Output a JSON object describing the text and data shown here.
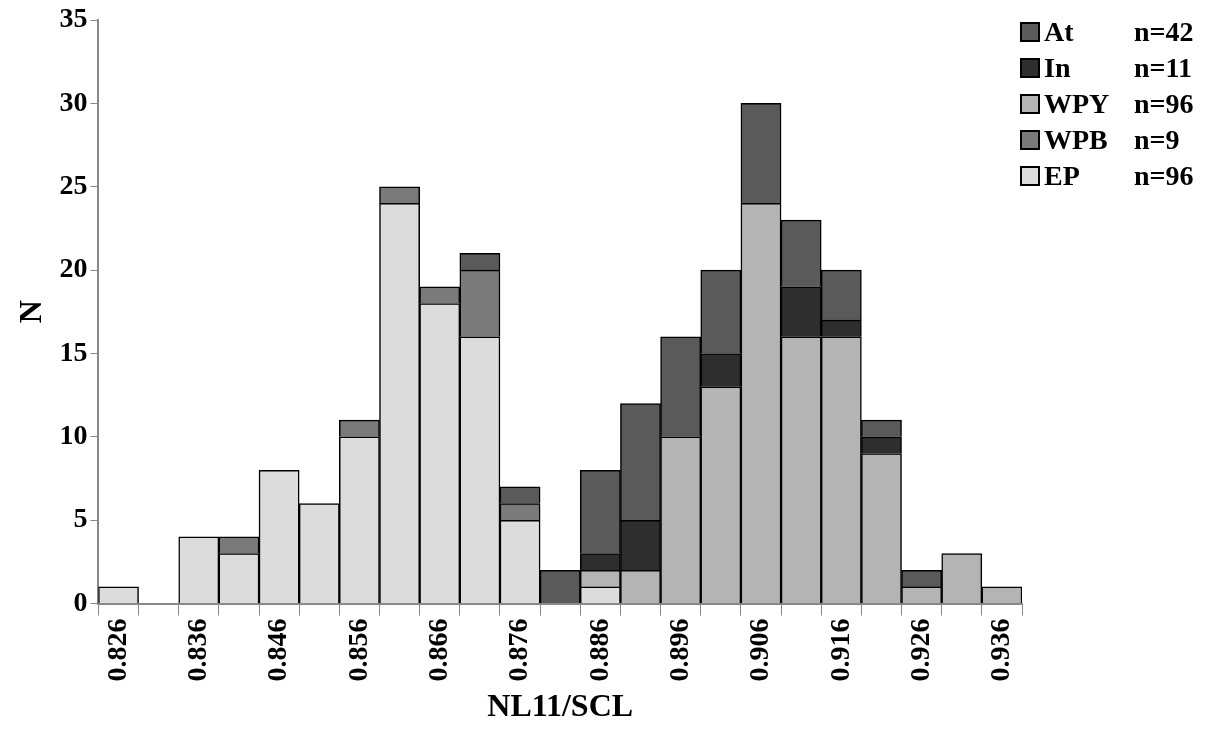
{
  "chart_data": {
    "type": "bar",
    "stacked": true,
    "xlabel": "NL11/SCL",
    "ylabel": "N",
    "categories": [
      "0.826",
      null,
      "0.836",
      null,
      "0.846",
      null,
      "0.856",
      null,
      "0.866",
      null,
      "0.876",
      null,
      "0.886",
      null,
      "0.896",
      null,
      "0.906",
      null,
      "0.916",
      null,
      "0.926",
      null,
      "0.936"
    ],
    "series": [
      {
        "name": "EP",
        "color": "#dcdcdc",
        "values": [
          1,
          0,
          4,
          3,
          8,
          6,
          10,
          24,
          18,
          16,
          5,
          0,
          1,
          0,
          0,
          0,
          0,
          0,
          0,
          0,
          0,
          0,
          0
        ]
      },
      {
        "name": "WPB",
        "color": "#7a7a7a",
        "values": [
          0,
          0,
          0,
          1,
          0,
          0,
          1,
          1,
          1,
          4,
          1,
          0,
          0,
          0,
          0,
          0,
          0,
          0,
          0,
          0,
          0,
          0,
          0
        ]
      },
      {
        "name": "WPY",
        "color": "#b4b4b4",
        "values": [
          0,
          0,
          0,
          0,
          0,
          0,
          0,
          0,
          0,
          0,
          0,
          0,
          1,
          2,
          10,
          13,
          24,
          16,
          16,
          9,
          1,
          3,
          1
        ]
      },
      {
        "name": "In",
        "color": "#2e2e2e",
        "values": [
          0,
          0,
          0,
          0,
          0,
          0,
          0,
          0,
          0,
          0,
          0,
          0,
          1,
          3,
          0,
          2,
          0,
          3,
          1,
          1,
          0,
          0,
          0
        ]
      },
      {
        "name": "At",
        "color": "#5a5a5a",
        "values": [
          0,
          0,
          0,
          0,
          0,
          0,
          0,
          0,
          0,
          1,
          1,
          2,
          5,
          7,
          6,
          5,
          6,
          4,
          3,
          1,
          1,
          0,
          0
        ]
      }
    ],
    "annotations": [
      "n=96",
      "n=9",
      "n=96",
      "n=11",
      "n=42"
    ],
    "ylim": [
      0,
      35
    ],
    "yticks": [
      0,
      5,
      10,
      15,
      20,
      25,
      30,
      35
    ],
    "grid": false,
    "legend": "top right"
  }
}
